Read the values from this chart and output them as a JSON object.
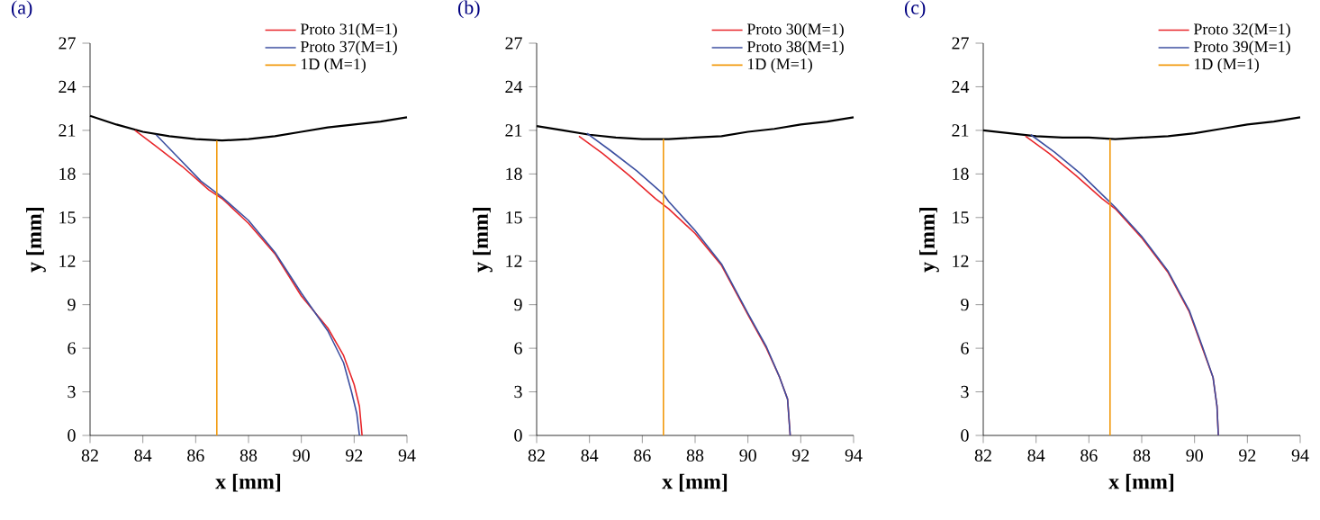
{
  "chart_data": [
    {
      "type": "line",
      "title": "(a)",
      "xlabel": "x [mm]",
      "ylabel": "y [mm]",
      "xlim": [
        82,
        94
      ],
      "ylim": [
        0,
        27
      ],
      "xticks": [
        82,
        84,
        86,
        88,
        90,
        92,
        94
      ],
      "yticks": [
        0,
        3,
        6,
        9,
        12,
        15,
        18,
        21,
        24,
        27
      ],
      "legend": "top right",
      "grid": false,
      "series": [
        {
          "color": "#000000",
          "x": [
            82,
            83,
            84,
            85,
            86,
            87,
            88,
            89,
            90,
            91,
            92,
            93,
            94
          ],
          "values": [
            22.0,
            21.4,
            20.9,
            20.6,
            20.4,
            20.3,
            20.4,
            20.6,
            20.9,
            21.2,
            21.4,
            21.6,
            21.9
          ]
        },
        {
          "name": "Proto 31(M=1)",
          "color": "#e8262a",
          "x": [
            83.7,
            84.5,
            85.5,
            86.5,
            87,
            88,
            89,
            90,
            91,
            91.6,
            92,
            92.2,
            92.3
          ],
          "values": [
            21.0,
            19.9,
            18.5,
            16.9,
            16.3,
            14.6,
            12.5,
            9.6,
            7.4,
            5.5,
            3.5,
            2,
            0
          ]
        },
        {
          "name": "Proto 37(M=1)",
          "color": "#3c4fa0",
          "x": [
            84.5,
            85.3,
            86.2,
            87,
            88,
            89,
            90,
            91,
            91.6,
            91.9,
            92.1,
            92.2
          ],
          "values": [
            20.7,
            19.2,
            17.5,
            16.4,
            14.8,
            12.6,
            9.8,
            7.2,
            5,
            3,
            1.5,
            0
          ]
        },
        {
          "name": "1D (M=1)",
          "color": "#f29a0c",
          "x": [
            86.8,
            86.8
          ],
          "values": [
            0,
            20.3
          ]
        }
      ]
    },
    {
      "type": "line",
      "title": "(b)",
      "xlabel": "x [mm]",
      "ylabel": "y [mm]",
      "xlim": [
        82,
        94
      ],
      "ylim": [
        0,
        27
      ],
      "xticks": [
        82,
        84,
        86,
        88,
        90,
        92,
        94
      ],
      "yticks": [
        0,
        3,
        6,
        9,
        12,
        15,
        18,
        21,
        24,
        27
      ],
      "legend": "top right",
      "grid": false,
      "series": [
        {
          "color": "#000000",
          "x": [
            82,
            83,
            84,
            85,
            86,
            87,
            88,
            89,
            90,
            91,
            92,
            93,
            94
          ],
          "values": [
            21.3,
            21.0,
            20.7,
            20.5,
            20.4,
            20.4,
            20.5,
            20.6,
            20.9,
            21.1,
            21.4,
            21.6,
            21.9
          ]
        },
        {
          "name": "Proto 30(M=1)",
          "color": "#e8262a",
          "x": [
            83.6,
            84.5,
            85.5,
            86.5,
            87,
            88,
            89,
            90,
            90.7,
            91.2,
            91.5,
            91.6
          ],
          "values": [
            20.6,
            19.4,
            17.9,
            16.3,
            15.6,
            13.9,
            11.7,
            8.3,
            6,
            4,
            2.5,
            0
          ]
        },
        {
          "name": "Proto 38(M=1)",
          "color": "#3c4fa0",
          "x": [
            83.9,
            84.8,
            85.8,
            86.8,
            87,
            88,
            89,
            90,
            90.7,
            91.2,
            91.5,
            91.6
          ],
          "values": [
            20.8,
            19.6,
            18.2,
            16.6,
            16.1,
            14.1,
            11.8,
            8.4,
            6.1,
            4,
            2.5,
            0
          ]
        },
        {
          "name": "1D (M=1)",
          "color": "#f29a0c",
          "x": [
            86.8,
            86.8
          ],
          "values": [
            0,
            20.4
          ]
        }
      ]
    },
    {
      "type": "line",
      "title": "(c)",
      "xlabel": "x [mm]",
      "ylabel": "y [mm]",
      "xlim": [
        82,
        94
      ],
      "ylim": [
        0,
        27
      ],
      "xticks": [
        82,
        84,
        86,
        88,
        90,
        92,
        94
      ],
      "yticks": [
        0,
        3,
        6,
        9,
        12,
        15,
        18,
        21,
        24,
        27
      ],
      "legend": "top right",
      "grid": false,
      "series": [
        {
          "color": "#000000",
          "x": [
            82,
            83,
            84,
            85,
            86,
            87,
            88,
            89,
            90,
            91,
            92,
            93,
            94
          ],
          "values": [
            21.0,
            20.8,
            20.6,
            20.5,
            20.5,
            20.4,
            20.5,
            20.6,
            20.8,
            21.1,
            21.4,
            21.6,
            21.9
          ]
        },
        {
          "name": "Proto 32(M=1)",
          "color": "#e8262a",
          "x": [
            83.6,
            84.5,
            85.5,
            86.5,
            87,
            88,
            89,
            89.8,
            90.3,
            90.7,
            90.85,
            90.9
          ],
          "values": [
            20.6,
            19.4,
            17.9,
            16.3,
            15.6,
            13.6,
            11.2,
            8.5,
            6,
            4,
            2,
            0
          ]
        },
        {
          "name": "Proto 39(M=1)",
          "color": "#3c4fa0",
          "x": [
            83.8,
            84.7,
            85.7,
            86.6,
            87,
            88,
            89,
            89.8,
            90.3,
            90.7,
            90.85,
            90.9
          ],
          "values": [
            20.7,
            19.5,
            18,
            16.4,
            15.7,
            13.7,
            11.3,
            8.6,
            6.1,
            4,
            2,
            0
          ]
        },
        {
          "name": "1D (M=1)",
          "color": "#f29a0c",
          "x": [
            86.8,
            86.8
          ],
          "values": [
            0,
            20.4
          ]
        }
      ]
    }
  ]
}
